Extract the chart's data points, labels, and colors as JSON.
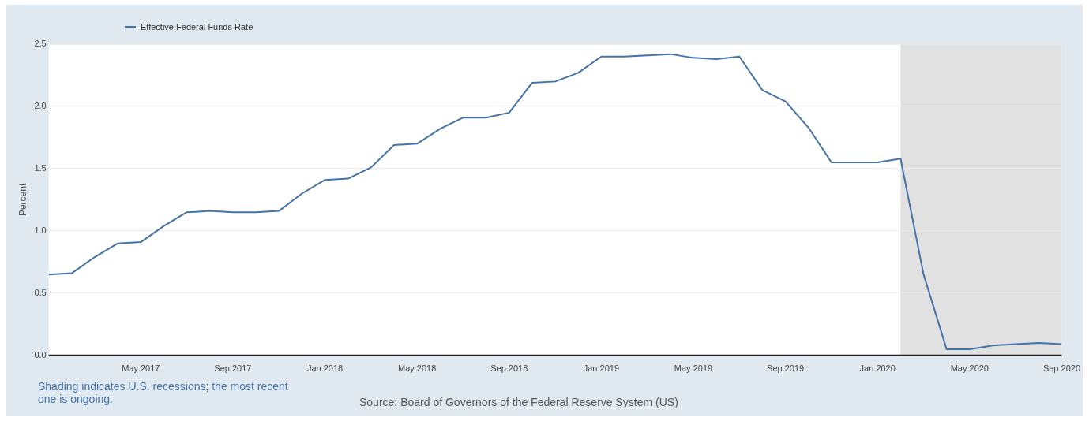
{
  "chart_data": {
    "type": "line",
    "ylabel": "Percent",
    "legend": "top left",
    "grid": "y",
    "marker": "none",
    "x": [
      "2017-01",
      "2017-02",
      "2017-03",
      "2017-04",
      "2017-05",
      "2017-06",
      "2017-07",
      "2017-08",
      "2017-09",
      "2017-10",
      "2017-11",
      "2017-12",
      "2018-01",
      "2018-02",
      "2018-03",
      "2018-04",
      "2018-05",
      "2018-06",
      "2018-07",
      "2018-08",
      "2018-09",
      "2018-10",
      "2018-11",
      "2018-12",
      "2019-01",
      "2019-02",
      "2019-03",
      "2019-04",
      "2019-05",
      "2019-06",
      "2019-07",
      "2019-08",
      "2019-09",
      "2019-10",
      "2019-11",
      "2019-12",
      "2020-01",
      "2020-02",
      "2020-03",
      "2020-04",
      "2020-05",
      "2020-06",
      "2020-07",
      "2020-08",
      "2020-09"
    ],
    "series": [
      {
        "name": "Effective Federal Funds Rate",
        "color": "#4572a7",
        "values": [
          0.65,
          0.66,
          0.79,
          0.9,
          0.91,
          1.04,
          1.15,
          1.16,
          1.15,
          1.15,
          1.16,
          1.3,
          1.41,
          1.42,
          1.51,
          1.69,
          1.7,
          1.82,
          1.91,
          1.91,
          1.95,
          2.19,
          2.2,
          2.27,
          2.4,
          2.4,
          2.41,
          2.42,
          2.39,
          2.38,
          2.4,
          2.13,
          2.04,
          1.83,
          1.55,
          1.55,
          1.55,
          1.58,
          0.65,
          0.05,
          0.05,
          0.08,
          0.09,
          0.1,
          0.09
        ]
      }
    ],
    "xlim": [
      "2017-01",
      "2020-09"
    ],
    "xticks": [
      {
        "value": "2017-05",
        "label": "May 2017"
      },
      {
        "value": "2017-09",
        "label": "Sep 2017"
      },
      {
        "value": "2018-01",
        "label": "Jan 2018"
      },
      {
        "value": "2018-05",
        "label": "May 2018"
      },
      {
        "value": "2018-09",
        "label": "Sep 2018"
      },
      {
        "value": "2019-01",
        "label": "Jan 2019"
      },
      {
        "value": "2019-05",
        "label": "May 2019"
      },
      {
        "value": "2019-09",
        "label": "Sep 2019"
      },
      {
        "value": "2020-01",
        "label": "Jan 2020"
      },
      {
        "value": "2020-05",
        "label": "May 2020"
      },
      {
        "value": "2020-09",
        "label": "Sep 2020"
      }
    ],
    "ylim": [
      0,
      2.5
    ],
    "yticks": [
      {
        "value": 0,
        "label": "0.0"
      },
      {
        "value": 0.5,
        "label": "0.5"
      },
      {
        "value": 1,
        "label": "1.0"
      },
      {
        "value": 1.5,
        "label": "1.5"
      },
      {
        "value": 2,
        "label": "2.0"
      },
      {
        "value": 2.5,
        "label": "2.5"
      }
    ],
    "bands": [
      {
        "axis": "x",
        "from": "2020-02",
        "to": "2020-09",
        "color": "#e1e1e1"
      }
    ],
    "annotations": [
      "Shading indicates U.S. recessions; the most recent one is ongoing.",
      "Source: Board of Governors of the Federal Reserve System (US)"
    ]
  }
}
